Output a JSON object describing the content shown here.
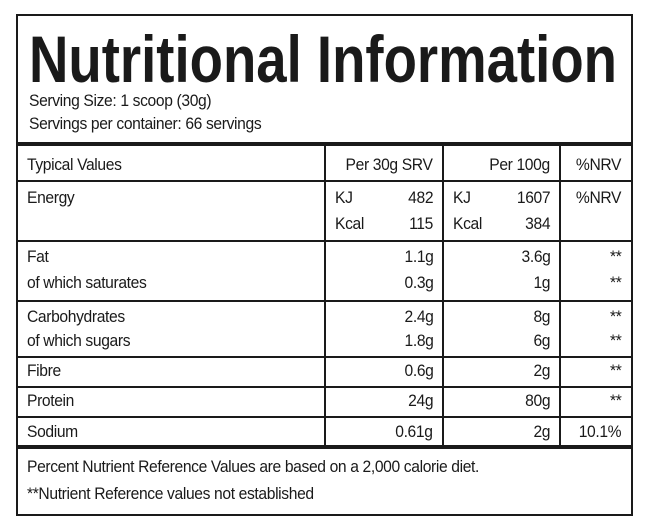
{
  "title": "Nutritional Information",
  "serving_size": "Serving Size: 1 scoop (30g)",
  "servings_per_container": "Servings per container: 66 servings",
  "table": {
    "header": [
      "Typical Values",
      "Per 30g SRV",
      "Per 100g",
      "%NRV"
    ],
    "energy": {
      "label": "Energy",
      "nrv": "%NRV",
      "rows": [
        [
          "KJ",
          "482",
          "KJ",
          "1607"
        ],
        [
          "Kcal",
          "115",
          "Kcal",
          "384"
        ]
      ]
    },
    "groups": [
      [
        [
          "Fat",
          "1.1g",
          "3.6g",
          "**"
        ],
        [
          "of which saturates",
          "0.3g",
          "1g",
          "**"
        ]
      ],
      [
        [
          "Carbohydrates",
          "2.4g",
          "8g",
          "**"
        ],
        [
          "of which sugars",
          "1.8g",
          "6g",
          "**"
        ]
      ],
      [
        [
          "Fibre",
          "0.6g",
          "2g",
          "**"
        ]
      ],
      [
        [
          "Protein",
          "24g",
          "80g",
          "**"
        ]
      ],
      [
        [
          "Sodium",
          "0.61g",
          "2g",
          "10.1%"
        ]
      ]
    ]
  },
  "footer": [
    "Percent Nutrient Reference Values are based on a 2,000 calorie diet.",
    "**Nutrient Reference values not established"
  ]
}
